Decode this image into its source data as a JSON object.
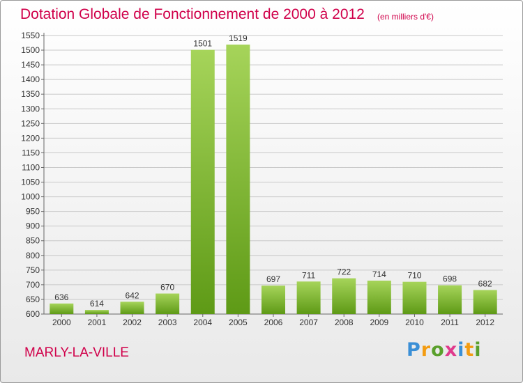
{
  "header": {
    "title": "Dotation Globale de Fonctionnement de 2000 à 2012",
    "subtitle": "(en milliers d'€)"
  },
  "footer": {
    "commune": "MARLY-LA-VILLE",
    "logo_text": "Proxiti"
  },
  "colors": {
    "title": "#d0004a",
    "bar_light": "#a6d45a",
    "bar_dark": "#5e9a16",
    "grid": "#c8c8c8"
  },
  "chart_data": {
    "type": "bar",
    "categories": [
      "2000",
      "2001",
      "2002",
      "2003",
      "2004",
      "2005",
      "2006",
      "2007",
      "2008",
      "2009",
      "2010",
      "2011",
      "2012"
    ],
    "values": [
      636,
      614,
      642,
      670,
      1501,
      1519,
      697,
      711,
      722,
      714,
      710,
      698,
      682
    ],
    "ylim": [
      600,
      1550
    ],
    "ytick_step": 50,
    "grid": "horizontal",
    "data_labels": true,
    "xlabel": "",
    "ylabel": ""
  }
}
